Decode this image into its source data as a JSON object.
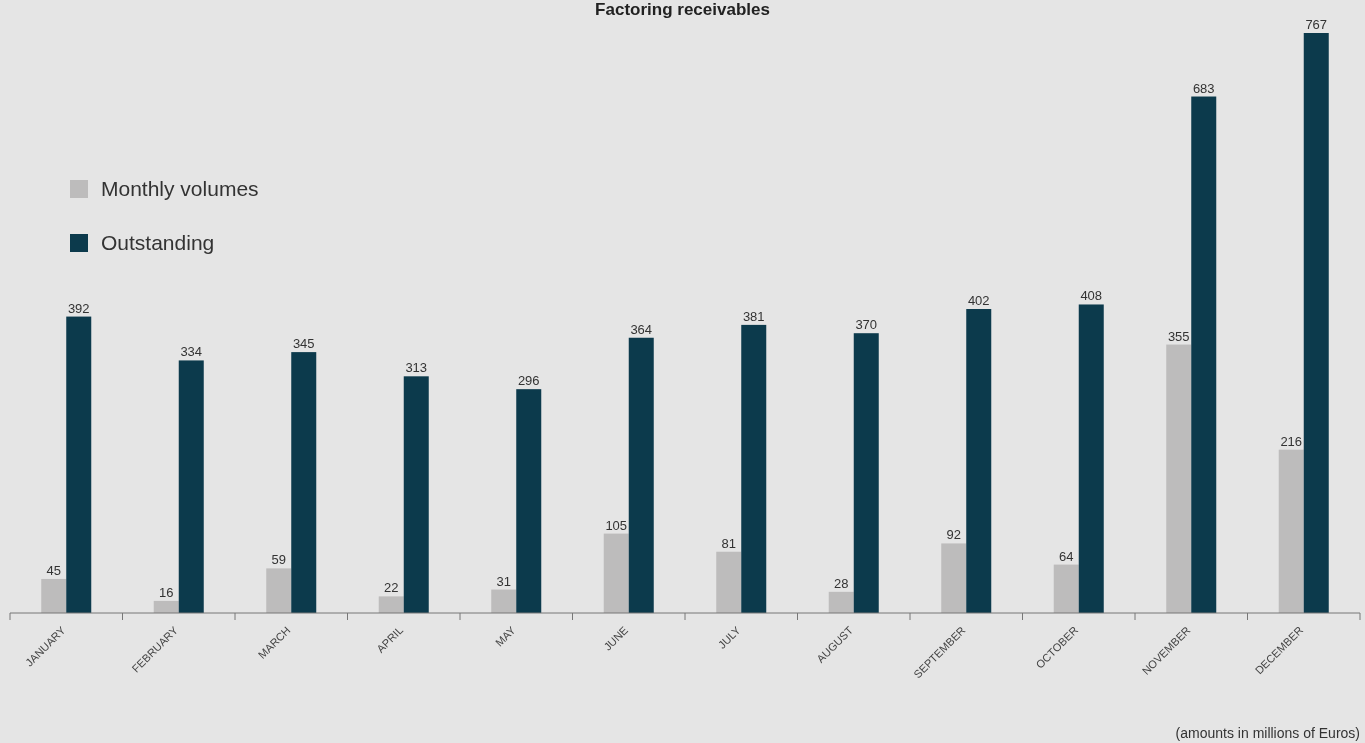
{
  "chart_data": {
    "type": "bar",
    "title": "Factoring receivables",
    "categories": [
      "JANUARY",
      "FEBRUARY",
      "MARCH",
      "APRIL",
      "MAY",
      "JUNE",
      "JULY",
      "AUGUST",
      "SEPTEMBER",
      "OCTOBER",
      "NOVEMBER",
      "DECEMBER"
    ],
    "series": [
      {
        "name": "Monthly volumes",
        "color": "#bdbcbc",
        "values": [
          45,
          16,
          59,
          22,
          31,
          105,
          81,
          28,
          92,
          64,
          355,
          216
        ]
      },
      {
        "name": "Outstanding",
        "color": "#0c3a4c",
        "values": [
          392,
          334,
          345,
          313,
          296,
          364,
          381,
          370,
          402,
          408,
          683,
          767
        ]
      }
    ],
    "data_labels": true,
    "legend": "top left",
    "annotations": [
      "(amounts in millions of Euros)"
    ]
  }
}
